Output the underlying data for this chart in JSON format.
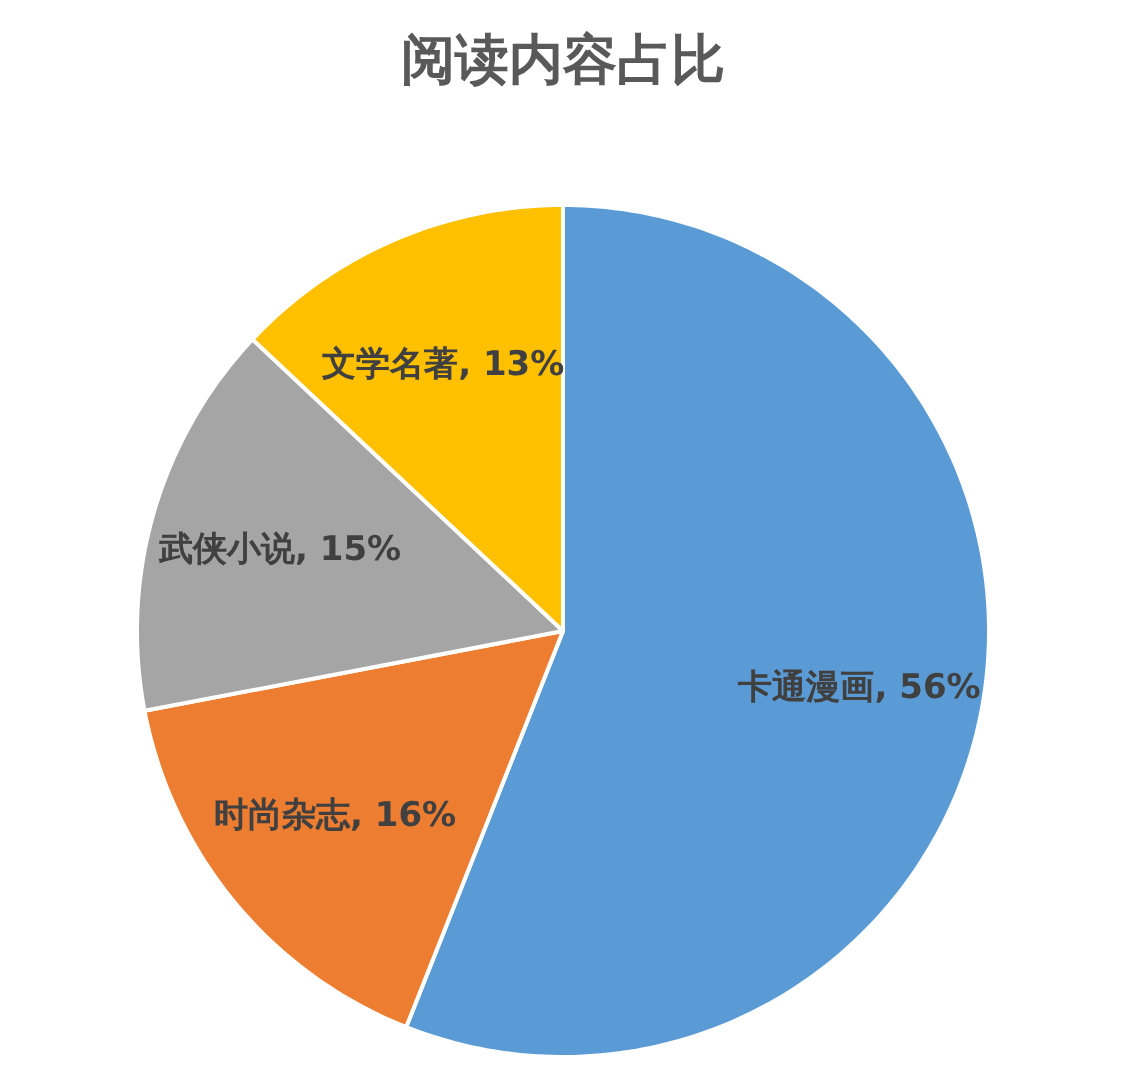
{
  "chart_data": {
    "type": "pie",
    "title": "阅读内容占比",
    "categories": [
      "卡通漫画",
      "时尚杂志",
      "武侠小说",
      "文学名著"
    ],
    "values": [
      56,
      16,
      15,
      13
    ],
    "colors": [
      "#5b9bd5",
      "#ed7d31",
      "#a5a5a5",
      "#ffc000"
    ],
    "value_labels": [
      ", 56%",
      ", 16%",
      ", 15%",
      ", 13%"
    ]
  }
}
